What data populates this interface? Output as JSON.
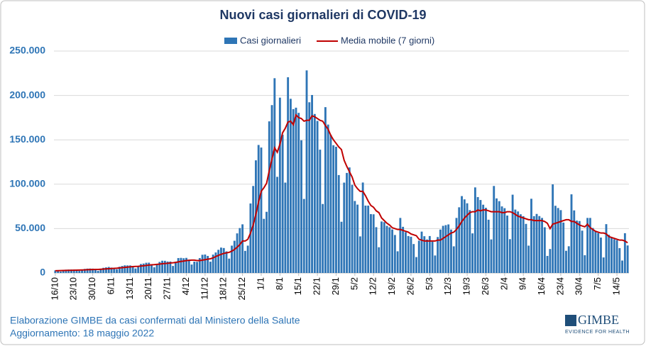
{
  "chart_data": {
    "type": "bar",
    "title": "Nuovi casi giornalieri di COVID-19",
    "source": "Elaborazione GIMBE da casi confermati dal Ministero della Salute",
    "note": "Aggiornamento: 18 maggio 2022",
    "logo": {
      "name": "GIMBE",
      "tagline": "EVIDENCE FOR HEALTH"
    },
    "ylim": [
      0,
      250000
    ],
    "yticks": [
      0,
      {
        "value": 50000,
        "label": "50.000"
      },
      {
        "value": 100000,
        "label": "100.000"
      },
      {
        "value": 150000,
        "label": "150.000"
      },
      {
        "value": 200000,
        "label": "200.000"
      },
      {
        "value": 250000,
        "label": "250.000"
      }
    ],
    "grid": true,
    "legend": "top",
    "categories": [
      "16/10",
      null,
      null,
      null,
      null,
      null,
      null,
      "23/10",
      null,
      null,
      null,
      null,
      null,
      null,
      "30/10",
      null,
      null,
      null,
      null,
      null,
      null,
      "6/11",
      null,
      null,
      null,
      null,
      null,
      null,
      "13/11",
      null,
      null,
      null,
      null,
      null,
      null,
      "20/11",
      null,
      null,
      null,
      null,
      null,
      null,
      "27/11",
      null,
      null,
      null,
      null,
      null,
      null,
      "4/12",
      null,
      null,
      null,
      null,
      null,
      null,
      "11/12",
      null,
      null,
      null,
      null,
      null,
      null,
      "18/12",
      null,
      null,
      null,
      null,
      null,
      null,
      "25/12",
      null,
      null,
      null,
      null,
      null,
      null,
      "1/1",
      null,
      null,
      null,
      null,
      null,
      null,
      "8/1",
      null,
      null,
      null,
      null,
      null,
      null,
      "15/1",
      null,
      null,
      null,
      null,
      null,
      null,
      "22/1",
      null,
      null,
      null,
      null,
      null,
      null,
      "29/1",
      null,
      null,
      null,
      null,
      null,
      null,
      "5/2",
      null,
      null,
      null,
      null,
      null,
      null,
      "12/2",
      null,
      null,
      null,
      null,
      null,
      null,
      "19/2",
      null,
      null,
      null,
      null,
      null,
      null,
      "26/2",
      null,
      null,
      null,
      null,
      null,
      null,
      "5/3",
      null,
      null,
      null,
      null,
      null,
      null,
      "12/3",
      null,
      null,
      null,
      null,
      null,
      null,
      "19/3",
      null,
      null,
      null,
      null,
      null,
      null,
      "26/3",
      null,
      null,
      null,
      null,
      null,
      null,
      "2/4",
      null,
      null,
      null,
      null,
      null,
      null,
      "9/4",
      null,
      null,
      null,
      null,
      null,
      null,
      "16/4",
      null,
      null,
      null,
      null,
      null,
      null,
      "23/4",
      null,
      null,
      null,
      null,
      null,
      null,
      "30/4",
      null,
      null,
      null,
      null,
      null,
      null,
      "7/5",
      null,
      null,
      null,
      null,
      null,
      null,
      "14/5",
      null,
      null,
      null,
      null
    ],
    "series": [
      {
        "name": "Casi giornalieri",
        "type": "bar",
        "color": "#2e75b6",
        "values": [
          2900,
          2400,
          1600,
          2700,
          3700,
          3800,
          3900,
          3900,
          3000,
          2500,
          3000,
          4600,
          4900,
          5000,
          4900,
          3300,
          2500,
          4500,
          5800,
          6300,
          6800,
          6100,
          5100,
          4200,
          7000,
          7900,
          8600,
          8500,
          8500,
          7500,
          5100,
          7700,
          10100,
          10600,
          11500,
          11600,
          9700,
          6400,
          10000,
          12400,
          13800,
          13700,
          12900,
          12900,
          7900,
          12800,
          16800,
          17000,
          16600,
          17000,
          15000,
          9500,
          12800,
          12500,
          16800,
          20500,
          20800,
          19200,
          12700,
          20700,
          23100,
          26100,
          28600,
          28100,
          24300,
          16200,
          30800,
          36300,
          44600,
          50600,
          54800,
          24900,
          30800,
          78300,
          98000,
          126900,
          144200,
          141300,
          61000,
          68900,
          170800,
          189100,
          219400,
          108300,
          197500,
          155700,
          101800,
          220500,
          196200,
          184600,
          186200,
          180400,
          149500,
          83400,
          228200,
          192300,
          200500,
          179100,
          171300,
          138900,
          77700,
          186800,
          167200,
          155700,
          143900,
          142200,
          110300,
          57700,
          101800,
          112700,
          118900,
          99300,
          81100,
          77000,
          41200,
          101900,
          75900,
          75900,
          66300,
          66100,
          51600,
          29000,
          58000,
          57300,
          53100,
          51500,
          49000,
          42800,
          24400,
          62000,
          52000,
          46000,
          41600,
          40800,
          32600,
          17900,
          36400,
          46600,
          41400,
          37700,
          41600,
          35300,
          19700,
          40500,
          48900,
          53100,
          53900,
          54700,
          48900,
          30000,
          62000,
          74000,
          86600,
          82900,
          78500,
          70800,
          44600,
          96400,
          85500,
          82200,
          76900,
          73400,
          60000,
          37800,
          98000,
          84000,
          80900,
          75000,
          73000,
          64700,
          38100,
          88200,
          71400,
          69300,
          66100,
          64000,
          55300,
          30800,
          83600,
          64000,
          66500,
          64100,
          62000,
          51500,
          19200,
          27000,
          99800,
          75700,
          73200,
          70800,
          56800,
          25000,
          30100,
          88600,
          70500,
          59000,
          58500,
          47700,
          20000,
          62000,
          62000,
          50700,
          47500,
          45000,
          39900,
          17500,
          55000,
          43000,
          40000,
          38100,
          37000,
          28000,
          14000,
          44800,
          31000
        ]
      },
      {
        "name": "Media mobile (7 giorni)",
        "type": "line",
        "color": "#c00000",
        "values": [
          2500,
          2600,
          2700,
          2800,
          2900,
          3000,
          3000,
          3100,
          3200,
          3300,
          3400,
          3500,
          3700,
          3800,
          3900,
          4000,
          4000,
          4200,
          4400,
          4600,
          4800,
          5000,
          5200,
          5400,
          5700,
          6000,
          6300,
          6600,
          6900,
          7200,
          7400,
          7500,
          7800,
          8100,
          8500,
          8900,
          9200,
          9400,
          9700,
          10000,
          10400,
          10700,
          10900,
          11300,
          11500,
          11900,
          12500,
          13000,
          13400,
          14000,
          14300,
          14500,
          14500,
          14000,
          14000,
          14500,
          15000,
          15600,
          16000,
          17000,
          18500,
          19800,
          21000,
          22000,
          22700,
          23200,
          24600,
          26500,
          29000,
          32000,
          36000,
          36000,
          38000,
          45000,
          54000,
          66000,
          80000,
          92000,
          96000,
          101000,
          115000,
          128000,
          141000,
          136000,
          145000,
          158000,
          163000,
          170000,
          171000,
          167000,
          178000,
          175000,
          174000,
          171000,
          172000,
          172000,
          177000,
          176000,
          174000,
          172000,
          171000,
          166000,
          162000,
          155000,
          150000,
          146000,
          142000,
          139000,
          127000,
          120000,
          114000,
          108000,
          99000,
          95000,
          92000,
          92000,
          87000,
          81000,
          76000,
          74000,
          70000,
          68000,
          62000,
          59000,
          56000,
          54000,
          51000,
          50000,
          49000,
          49000,
          48000,
          47000,
          46000,
          44000,
          43000,
          42000,
          38000,
          37000,
          36000,
          36000,
          36000,
          36000,
          36000,
          37000,
          37000,
          39000,
          41000,
          43000,
          45000,
          46000,
          49000,
          53000,
          58000,
          62000,
          65000,
          68000,
          69000,
          69000,
          71000,
          70000,
          71000,
          71000,
          70000,
          69000,
          69000,
          69000,
          69000,
          68000,
          68000,
          69000,
          69000,
          68000,
          66000,
          64000,
          63000,
          62000,
          61000,
          60000,
          60000,
          59000,
          59000,
          59000,
          59000,
          58000,
          56000,
          50000,
          55000,
          56000,
          57000,
          58000,
          59000,
          60000,
          60000,
          58000,
          58000,
          56000,
          54000,
          53000,
          52000,
          55000,
          51000,
          49000,
          47000,
          46000,
          45000,
          45000,
          44000,
          41000,
          40000,
          39000,
          38000,
          37000,
          37000,
          36000,
          34000
        ]
      }
    ]
  }
}
